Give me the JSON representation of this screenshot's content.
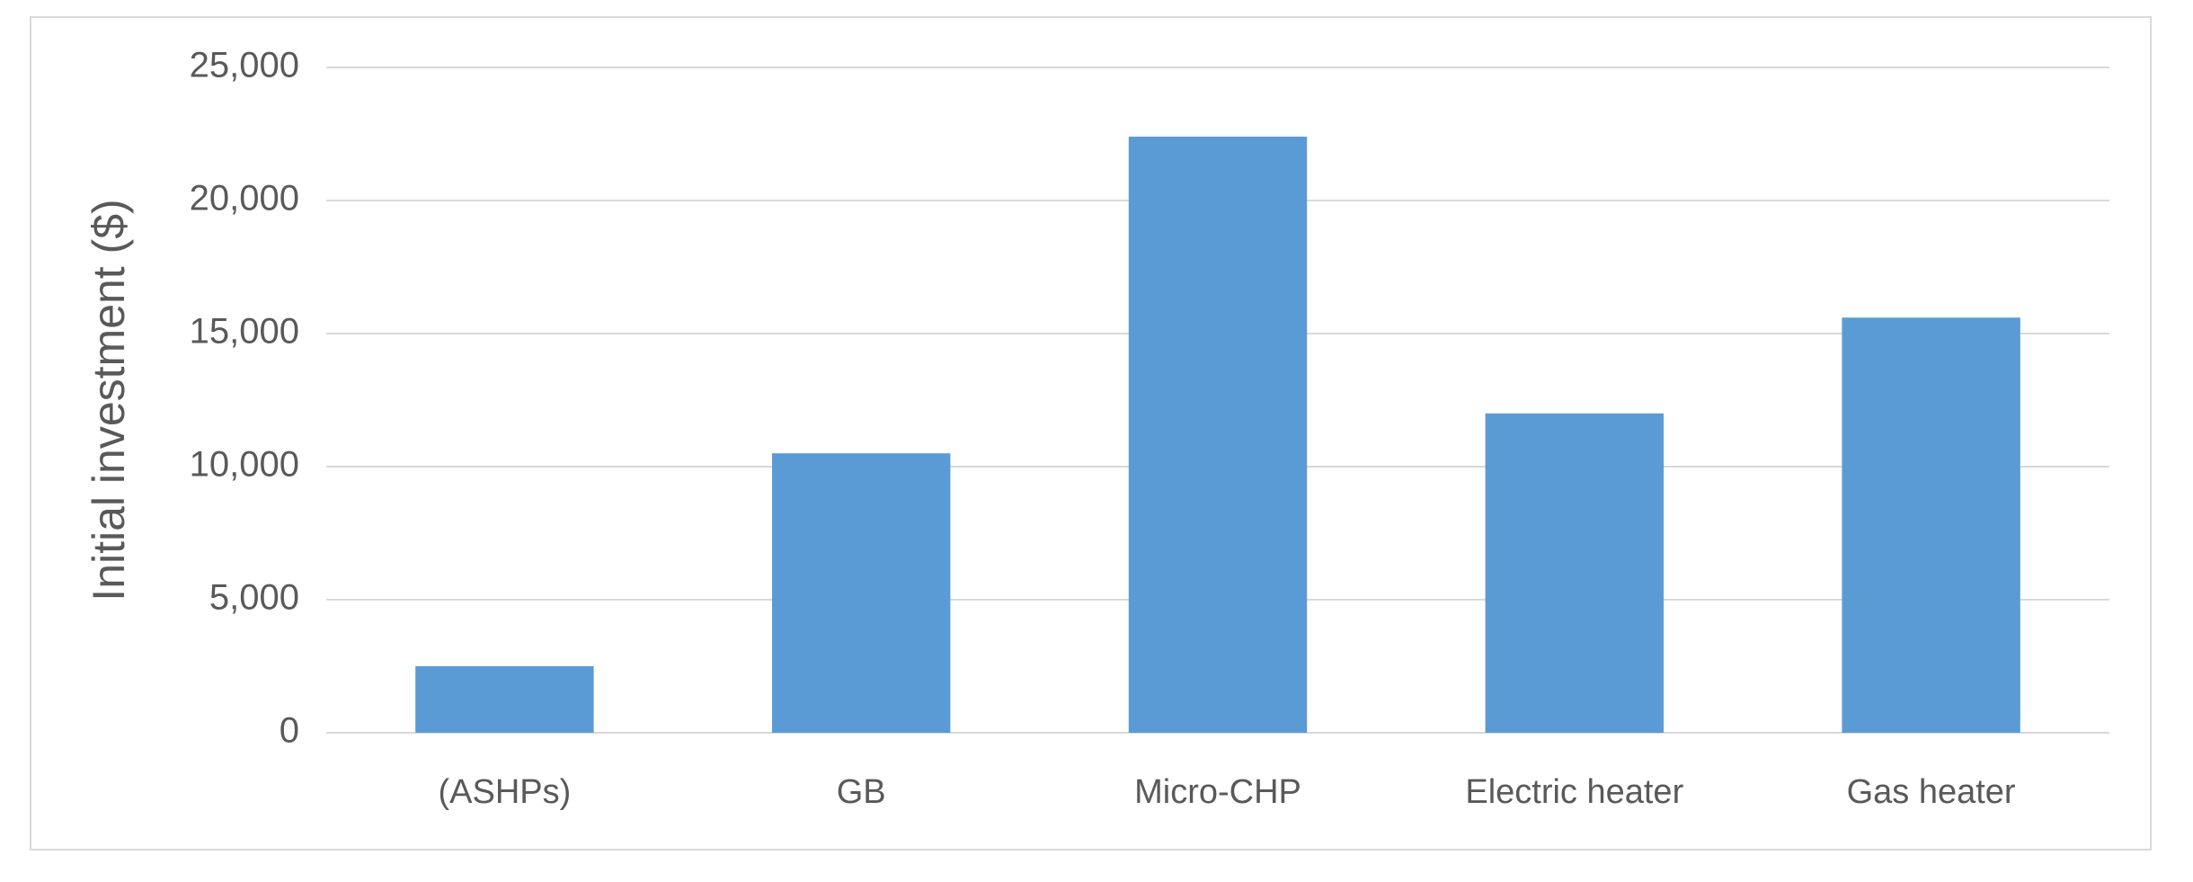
{
  "chart_data": {
    "type": "bar",
    "y_label": "Initial investment ($)",
    "categories": [
      "(ASHPs)",
      "GB",
      "Micro-CHP",
      "Electric heater",
      "Gas heater"
    ],
    "values": [
      2500,
      10500,
      22400,
      12000,
      15600
    ],
    "color": "#5b9bd5",
    "ylim": [
      0,
      25000
    ],
    "yticks": [
      0,
      {
        "value": 5000,
        "label": "5,000"
      },
      {
        "value": 10000,
        "label": "10,000"
      },
      {
        "value": 15000,
        "label": "15,000"
      },
      {
        "value": 20000,
        "label": "20,000"
      },
      {
        "value": 25000,
        "label": "25,000"
      }
    ],
    "grid": true
  }
}
